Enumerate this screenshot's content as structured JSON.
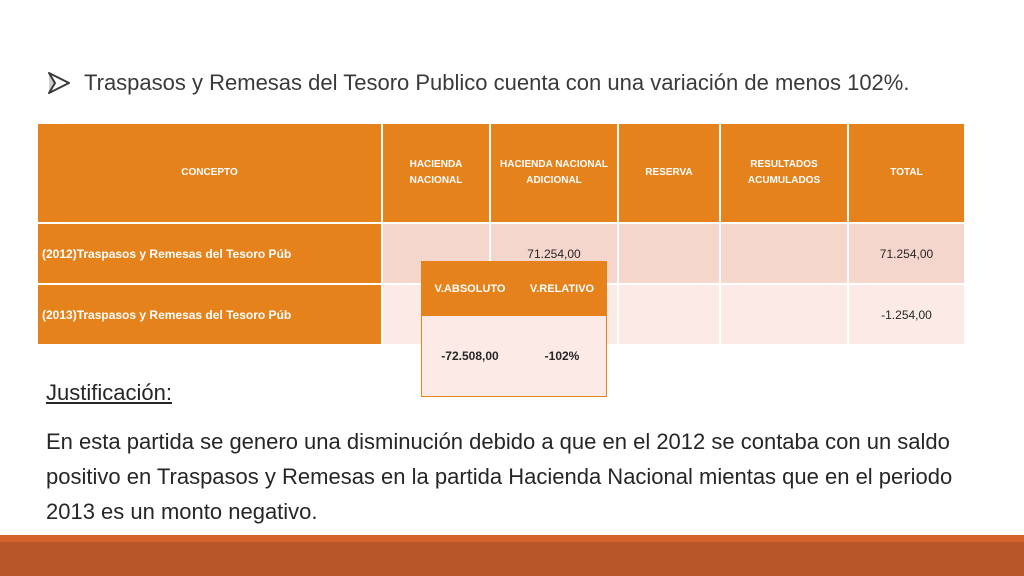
{
  "bullet": {
    "icon": "arrow-bullet-icon",
    "text": "Traspasos y Remesas del Tesoro Publico cuenta con una variación de menos 102%."
  },
  "table": {
    "headers": [
      "CONCEPTO",
      "HACIENDA NACIONAL",
      "HACIENDA NACIONAL ADICIONAL",
      "RESERVA",
      "RESULTADOS ACUMULADOS",
      "TOTAL"
    ],
    "rows": [
      [
        "(2012)Traspasos y Remesas del Tesoro Púb",
        "",
        "71.254,00",
        "",
        "",
        "71.254,00"
      ],
      [
        "(2013)Traspasos y Remesas del Tesoro Púb",
        "",
        "",
        "",
        "",
        "-1.254,00"
      ]
    ]
  },
  "variation": {
    "headers": [
      "V.ABSOLUTO",
      "V.RELATIVO"
    ],
    "values": [
      "-72.508,00",
      "-102%"
    ]
  },
  "justification": {
    "title": "Justificación:",
    "text": "En esta partida se genero una disminución debido a que en el 2012 se contaba con un saldo positivo en Traspasos y Remesas en la partida Hacienda Nacional mientas que en el periodo 2013 es un monto negativo."
  },
  "colors": {
    "accent": "#e5821b",
    "row_dark": "#f5d6cd",
    "row_light": "#fbeae6",
    "footer": "#b85629"
  }
}
